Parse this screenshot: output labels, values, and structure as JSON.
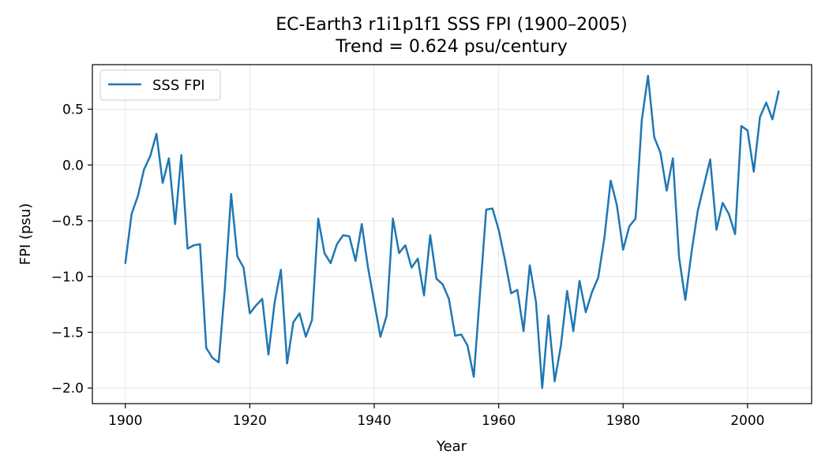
{
  "chart_data": {
    "type": "line",
    "title": "EC-Earth3 r1i1p1f1 SSS FPI (1900–2005)",
    "subtitle": "Trend = 0.624 psu/century",
    "xlabel": "Year",
    "ylabel": "FPI (psu)",
    "xlim": [
      1894.7,
      2010.3
    ],
    "ylim": [
      -2.14,
      0.9
    ],
    "x_ticks": [
      1900,
      1920,
      1940,
      1960,
      1980,
      2000
    ],
    "y_ticks": [
      -2.0,
      -1.5,
      -1.0,
      -0.5,
      0.0,
      0.5
    ],
    "y_tick_labels": [
      "−2.0",
      "−1.5",
      "−1.0",
      "−0.5",
      "0.0",
      "0.5"
    ],
    "grid": true,
    "legend_position": "top-left",
    "series_color": "#1f77b4",
    "series": [
      {
        "name": "SSS FPI",
        "x": [
          1900,
          1901,
          1902,
          1903,
          1904,
          1905,
          1906,
          1907,
          1908,
          1909,
          1910,
          1911,
          1912,
          1913,
          1914,
          1915,
          1916,
          1917,
          1918,
          1919,
          1920,
          1921,
          1922,
          1923,
          1924,
          1925,
          1926,
          1927,
          1928,
          1929,
          1930,
          1931,
          1932,
          1933,
          1934,
          1935,
          1936,
          1937,
          1938,
          1939,
          1940,
          1941,
          1942,
          1943,
          1944,
          1945,
          1946,
          1947,
          1948,
          1949,
          1950,
          1951,
          1952,
          1953,
          1954,
          1955,
          1956,
          1957,
          1958,
          1959,
          1960,
          1961,
          1962,
          1963,
          1964,
          1965,
          1966,
          1967,
          1968,
          1969,
          1970,
          1971,
          1972,
          1973,
          1974,
          1975,
          1976,
          1977,
          1978,
          1979,
          1980,
          1981,
          1982,
          1983,
          1984,
          1985,
          1986,
          1987,
          1988,
          1989,
          1990,
          1991,
          1992,
          1993,
          1994,
          1995,
          1996,
          1997,
          1998,
          1999,
          2000,
          2001,
          2002,
          2003,
          2004,
          2005
        ],
        "values": [
          -0.88,
          -0.44,
          -0.28,
          -0.04,
          0.08,
          0.28,
          -0.16,
          0.06,
          -0.53,
          0.09,
          -0.75,
          -0.72,
          -0.71,
          -1.64,
          -1.73,
          -1.77,
          -1.1,
          -0.26,
          -0.82,
          -0.92,
          -1.33,
          -1.26,
          -1.2,
          -1.7,
          -1.23,
          -0.94,
          -1.78,
          -1.41,
          -1.33,
          -1.54,
          -1.39,
          -0.48,
          -0.79,
          -0.88,
          -0.71,
          -0.63,
          -0.64,
          -0.86,
          -0.53,
          -0.92,
          -1.23,
          -1.54,
          -1.35,
          -0.48,
          -0.79,
          -0.72,
          -0.92,
          -0.84,
          -1.17,
          -0.63,
          -1.02,
          -1.07,
          -1.2,
          -1.53,
          -1.52,
          -1.62,
          -1.9,
          -1.15,
          -0.4,
          -0.39,
          -0.58,
          -0.85,
          -1.15,
          -1.12,
          -1.49,
          -0.9,
          -1.23,
          -2.0,
          -1.35,
          -1.94,
          -1.62,
          -1.13,
          -1.49,
          -1.04,
          -1.32,
          -1.14,
          -1.01,
          -0.65,
          -0.14,
          -0.36,
          -0.76,
          -0.55,
          -0.48,
          0.4,
          0.8,
          0.25,
          0.11,
          -0.23,
          0.06,
          -0.83,
          -1.21,
          -0.78,
          -0.41,
          -0.18,
          0.05,
          -0.58,
          -0.34,
          -0.44,
          -0.62,
          0.35,
          0.31,
          -0.06,
          0.43,
          0.56,
          0.41,
          0.66
        ]
      }
    ]
  }
}
